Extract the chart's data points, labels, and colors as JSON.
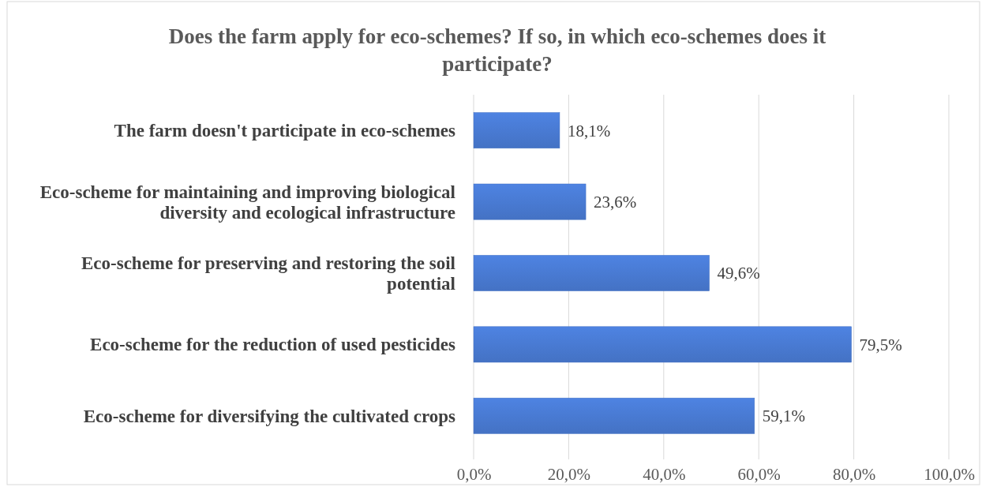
{
  "chart_data": {
    "type": "bar",
    "orientation": "horizontal",
    "title": "Does the farm apply for eco-schemes? If so, in which eco-schemes does it participate?",
    "categories": [
      "The farm doesn't participate in eco-schemes",
      "Eco-scheme for maintaining and improving biological diversity and ecological infrastructure",
      "Eco-scheme for preserving and restoring the soil potential",
      "Eco-scheme for the reduction of used pesticides",
      "Eco-scheme for diversifying the cultivated crops"
    ],
    "values": [
      18.1,
      23.6,
      49.6,
      79.5,
      59.1
    ],
    "value_labels": [
      "18,1%",
      "23,6%",
      "49,6%",
      "79,5%",
      "59,1%"
    ],
    "color": "#4472c4",
    "xlim": [
      0,
      100
    ],
    "xticks": [
      {
        "value": 0,
        "label": "0,0%"
      },
      {
        "value": 20,
        "label": "20,0%"
      },
      {
        "value": 40,
        "label": "40,0%"
      },
      {
        "value": 60,
        "label": "60,0%"
      },
      {
        "value": 80,
        "label": "80,0%"
      },
      {
        "value": 100,
        "label": "100,0%"
      }
    ],
    "grid": "x"
  }
}
